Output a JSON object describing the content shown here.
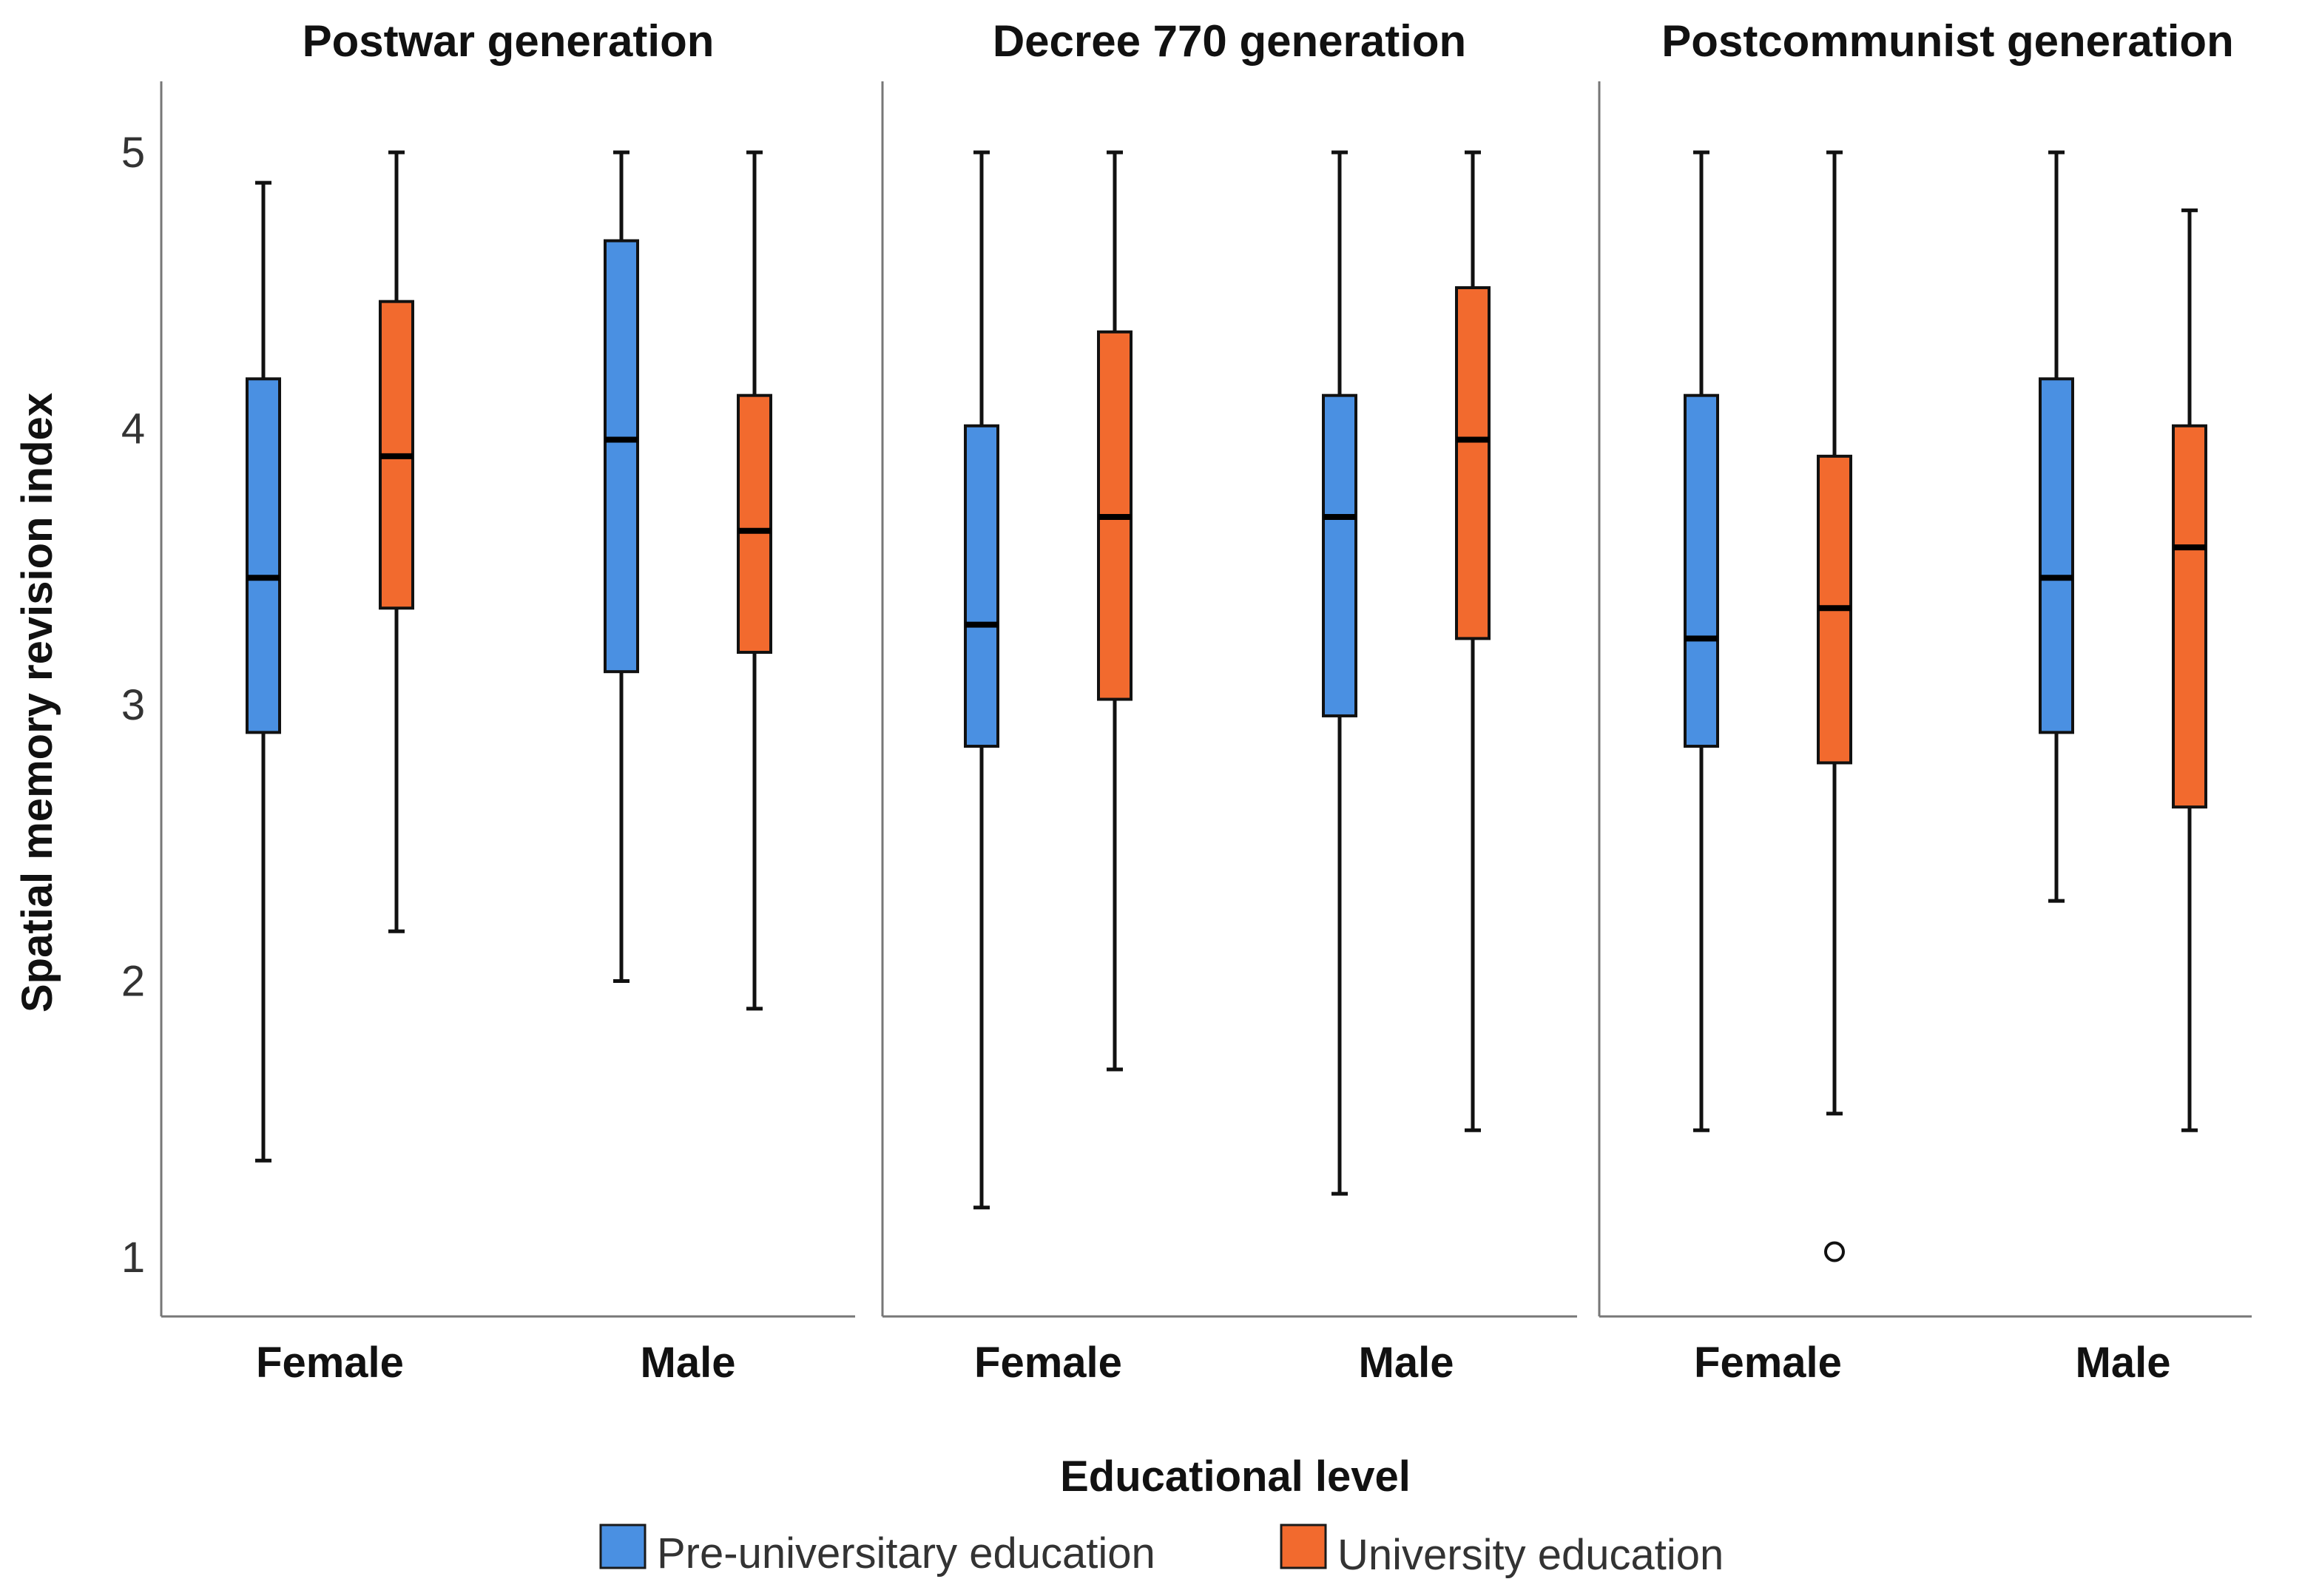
{
  "chart_data": {
    "type": "boxplot",
    "ylabel": "Spatial memory revision index",
    "xlabel": "Educational level",
    "ylim": [
      0.8,
      5.25
    ],
    "y_ticks": [
      "1",
      "2",
      "3",
      "4",
      "5"
    ],
    "grid": false,
    "legend_position": "bottom-center",
    "series": [
      {
        "name": "Pre-universitary education",
        "color": "#4a90e2"
      },
      {
        "name": "University education",
        "color": "#f26a2e"
      }
    ],
    "panels": [
      {
        "title": "Postwar generation",
        "categories": [
          "Female",
          "Male"
        ],
        "boxes": [
          {
            "category": "Female",
            "series": "Pre-universitary education",
            "min": 1.35,
            "q1": 2.9,
            "median": 3.46,
            "q3": 4.18,
            "max": 4.89,
            "outliers": []
          },
          {
            "category": "Female",
            "series": "University education",
            "min": 2.18,
            "q1": 3.35,
            "median": 3.9,
            "q3": 4.46,
            "max": 5.0,
            "outliers": []
          },
          {
            "category": "Male",
            "series": "Pre-universitary education",
            "min": 2.0,
            "q1": 3.12,
            "median": 3.96,
            "q3": 4.68,
            "max": 5.0,
            "outliers": []
          },
          {
            "category": "Male",
            "series": "University education",
            "min": 1.9,
            "q1": 3.19,
            "median": 3.63,
            "q3": 4.12,
            "max": 5.0,
            "outliers": []
          }
        ]
      },
      {
        "title": "Decree 770 generation",
        "categories": [
          "Female",
          "Male"
        ],
        "boxes": [
          {
            "category": "Female",
            "series": "Pre-universitary education",
            "min": 1.18,
            "q1": 2.85,
            "median": 3.29,
            "q3": 4.01,
            "max": 5.0,
            "outliers": []
          },
          {
            "category": "Female",
            "series": "University education",
            "min": 1.68,
            "q1": 3.02,
            "median": 3.68,
            "q3": 4.35,
            "max": 5.0,
            "outliers": []
          },
          {
            "category": "Male",
            "series": "Pre-universitary education",
            "min": 1.23,
            "q1": 2.96,
            "median": 3.68,
            "q3": 4.12,
            "max": 5.0,
            "outliers": []
          },
          {
            "category": "Male",
            "series": "University education",
            "min": 1.46,
            "q1": 3.24,
            "median": 3.96,
            "q3": 4.51,
            "max": 5.0,
            "outliers": []
          }
        ]
      },
      {
        "title": "Postcommunist generation",
        "categories": [
          "Female",
          "Male"
        ],
        "boxes": [
          {
            "category": "Female",
            "series": "Pre-universitary education",
            "min": 1.46,
            "q1": 2.85,
            "median": 3.24,
            "q3": 4.12,
            "max": 5.0,
            "outliers": []
          },
          {
            "category": "Female",
            "series": "University education",
            "min": 1.52,
            "q1": 2.79,
            "median": 3.35,
            "q3": 3.9,
            "max": 5.0,
            "outliers": [
              1.02
            ]
          },
          {
            "category": "Male",
            "series": "Pre-universitary education",
            "min": 2.29,
            "q1": 2.9,
            "median": 3.46,
            "q3": 4.18,
            "max": 5.0,
            "outliers": []
          },
          {
            "category": "Male",
            "series": "University education",
            "min": 1.46,
            "q1": 2.63,
            "median": 3.57,
            "q3": 4.01,
            "max": 4.79,
            "outliers": []
          }
        ]
      }
    ]
  }
}
